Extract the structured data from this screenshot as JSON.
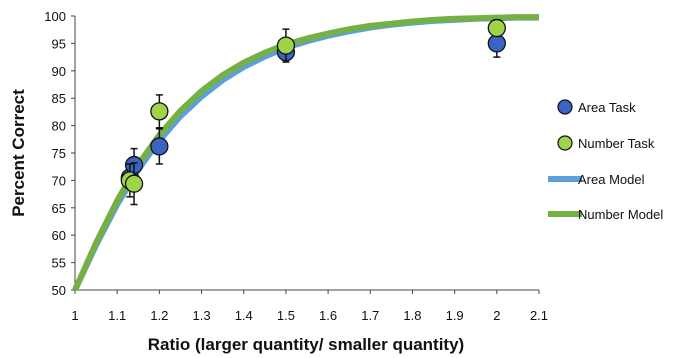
{
  "chart_data": {
    "type": "scatter",
    "xlabel": "Ratio (larger quantity/ smaller quantity)",
    "ylabel": "Percent Correct",
    "xlim": [
      1,
      2.1
    ],
    "ylim": [
      50,
      100
    ],
    "x_ticks": [
      "1",
      "1.1",
      "1.2",
      "1.3",
      "1.4",
      "1.5",
      "1.6",
      "1.7",
      "1.8",
      "1.9",
      "2",
      "2.1"
    ],
    "y_ticks": [
      "50",
      "55",
      "60",
      "65",
      "70",
      "75",
      "80",
      "85",
      "90",
      "95",
      "100"
    ],
    "grid": false,
    "legend_position": "right",
    "series": [
      {
        "name": "Area Task",
        "kind": "points",
        "color": "#3a64c2",
        "points": [
          {
            "x": 1.13,
            "y": 70.5,
            "err": 2
          },
          {
            "x": 1.14,
            "y": 72.8,
            "err": 3
          },
          {
            "x": 1.2,
            "y": 76.2,
            "err": 3.2
          },
          {
            "x": 1.5,
            "y": 93.4,
            "err": 1.5
          },
          {
            "x": 2.0,
            "y": 95.0,
            "err": 2.5
          }
        ]
      },
      {
        "name": "Number Task",
        "kind": "points",
        "color": "#9ed44a",
        "points": [
          {
            "x": 1.13,
            "y": 70.0,
            "err": 3
          },
          {
            "x": 1.14,
            "y": 69.4,
            "err": 3.8
          },
          {
            "x": 1.2,
            "y": 82.6,
            "err": 3
          },
          {
            "x": 1.5,
            "y": 94.6,
            "err": 3
          },
          {
            "x": 2.0,
            "y": 97.8,
            "err": 1.5
          }
        ]
      },
      {
        "name": "Area Model",
        "kind": "line",
        "color": "#5c9fdb",
        "x": [
          1.0,
          1.05,
          1.1,
          1.15,
          1.2,
          1.25,
          1.3,
          1.35,
          1.4,
          1.45,
          1.5,
          1.55,
          1.6,
          1.65,
          1.7,
          1.75,
          1.8,
          1.85,
          1.9,
          1.95,
          2.0,
          2.05,
          2.1
        ],
        "y": [
          50,
          58.2,
          65.6,
          72,
          77.3,
          81.7,
          85.3,
          88.3,
          90.7,
          92.6,
          94.2,
          95.4,
          96.4,
          97.2,
          97.9,
          98.4,
          98.8,
          99.1,
          99.3,
          99.5,
          99.6,
          99.7,
          99.7
        ]
      },
      {
        "name": "Number Model",
        "kind": "line",
        "color": "#74b043",
        "x": [
          1.0,
          1.05,
          1.1,
          1.15,
          1.2,
          1.25,
          1.3,
          1.35,
          1.4,
          1.45,
          1.5,
          1.55,
          1.6,
          1.65,
          1.7,
          1.75,
          1.8,
          1.85,
          1.9,
          1.95,
          2.0,
          2.05,
          2.1
        ],
        "y": [
          50,
          58.6,
          66.3,
          72.9,
          78.3,
          82.7,
          86.3,
          89.2,
          91.5,
          93.3,
          94.8,
          95.9,
          96.8,
          97.6,
          98.2,
          98.6,
          99,
          99.3,
          99.5,
          99.6,
          99.7,
          99.8,
          99.8
        ]
      }
    ]
  }
}
